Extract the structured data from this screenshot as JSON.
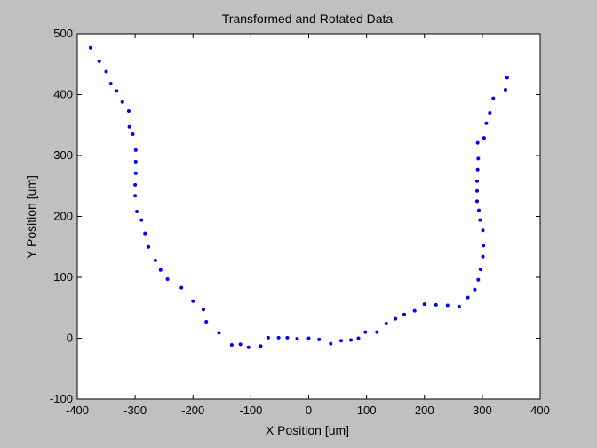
{
  "chart_data": {
    "type": "scatter",
    "title": "Transformed and Rotated Data",
    "xlabel": "X Position [um]",
    "ylabel": "Y Position [um]",
    "xlim": [
      -400,
      400
    ],
    "ylim": [
      -100,
      500
    ],
    "xticks": [
      -400,
      -300,
      -200,
      -100,
      0,
      100,
      200,
      300,
      400
    ],
    "yticks": [
      -100,
      0,
      100,
      200,
      300,
      400,
      500
    ],
    "grid": false,
    "marker_color": "#0000ff",
    "series": [
      {
        "points": [
          [
            -377,
            477
          ],
          [
            -362,
            455
          ],
          [
            -350,
            438
          ],
          [
            -342,
            418
          ],
          [
            -332,
            406
          ],
          [
            -322,
            388
          ],
          [
            -311,
            373
          ],
          [
            -310,
            347
          ],
          [
            -304,
            335
          ],
          [
            -299,
            309
          ],
          [
            -299,
            290
          ],
          [
            -299,
            271
          ],
          [
            -300,
            252
          ],
          [
            -300,
            234
          ],
          [
            -297,
            208
          ],
          [
            -289,
            194
          ],
          [
            -283,
            172
          ],
          [
            -277,
            150
          ],
          [
            -265,
            128
          ],
          [
            -256,
            112
          ],
          [
            -244,
            97
          ],
          [
            -220,
            83
          ],
          [
            -200,
            61
          ],
          [
            -182,
            47
          ],
          [
            -177,
            27
          ],
          [
            -155,
            9
          ],
          [
            -133,
            -11
          ],
          [
            -118,
            -10
          ],
          [
            -104,
            -15
          ],
          [
            -83,
            -13
          ],
          [
            -70,
            1
          ],
          [
            -52,
            1
          ],
          [
            -37,
            1
          ],
          [
            -20,
            -1
          ],
          [
            0,
            0
          ],
          [
            18,
            -2
          ],
          [
            38,
            -9
          ],
          [
            56,
            -4
          ],
          [
            73,
            -3
          ],
          [
            86,
            0
          ],
          [
            98,
            10
          ],
          [
            118,
            10
          ],
          [
            134,
            24
          ],
          [
            150,
            32
          ],
          [
            165,
            39
          ],
          [
            183,
            45
          ],
          [
            200,
            56
          ],
          [
            220,
            55
          ],
          [
            240,
            54
          ],
          [
            260,
            52
          ],
          [
            275,
            67
          ],
          [
            287,
            80
          ],
          [
            293,
            96
          ],
          [
            297,
            113
          ],
          [
            301,
            134
          ],
          [
            302,
            152
          ],
          [
            301,
            177
          ],
          [
            296,
            194
          ],
          [
            294,
            210
          ],
          [
            291,
            225
          ],
          [
            291,
            242
          ],
          [
            291,
            258
          ],
          [
            292,
            277
          ],
          [
            293,
            295
          ],
          [
            292,
            321
          ],
          [
            303,
            329
          ],
          [
            307,
            353
          ],
          [
            313,
            370
          ],
          [
            319,
            394
          ],
          [
            340,
            408
          ],
          [
            343,
            428
          ]
        ]
      }
    ]
  }
}
